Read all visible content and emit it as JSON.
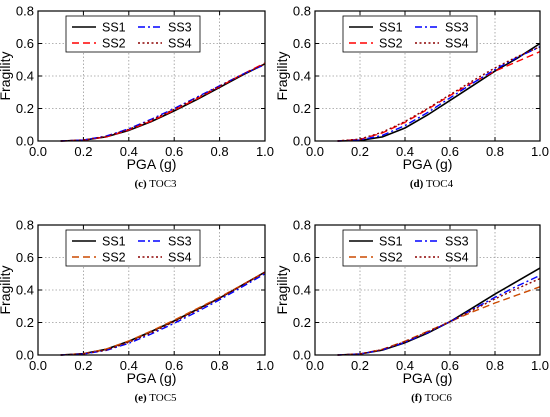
{
  "colors": {
    "SS1": "#000000",
    "SS2_dash_red": "#ff0000",
    "SS2_dash_orange": "#cc4a00",
    "SS3": "#0000ff",
    "SS4": "#8b0000",
    "grid": "#9a9a9a"
  },
  "chart_data": [
    {
      "type": "line",
      "caption_letter": "(c)",
      "caption_title": "TOC3",
      "xlabel": "PGA (g)",
      "ylabel": "Fragility",
      "xlim": [
        0.0,
        1.0
      ],
      "ylim": [
        0.0,
        0.8
      ],
      "xticks": [
        "0.0",
        "0.2",
        "0.4",
        "0.6",
        "0.8",
        "1.0"
      ],
      "yticks": [
        "0.0",
        "0.2",
        "0.4",
        "0.6",
        "0.8"
      ],
      "grid": true,
      "legend_position": "top-left",
      "x": [
        0.1,
        0.2,
        0.3,
        0.4,
        0.5,
        0.6,
        0.7,
        0.8,
        0.9,
        1.0
      ],
      "series": [
        {
          "name": "SS1",
          "style": "solid",
          "color_key": "SS1",
          "values": [
            0.0,
            0.005,
            0.025,
            0.065,
            0.12,
            0.185,
            0.255,
            0.33,
            0.405,
            0.475
          ]
        },
        {
          "name": "SS2",
          "style": "dash",
          "color_key": "SS2_dash_red",
          "values": [
            0.0,
            0.005,
            0.025,
            0.068,
            0.123,
            0.19,
            0.26,
            0.335,
            0.41,
            0.48
          ]
        },
        {
          "name": "SS3",
          "style": "dashdot",
          "color_key": "SS3",
          "values": [
            0.0,
            0.006,
            0.03,
            0.075,
            0.135,
            0.2,
            0.27,
            0.34,
            0.41,
            0.47
          ]
        },
        {
          "name": "SS4",
          "style": "dot",
          "color_key": "SS4",
          "values": [
            0.0,
            0.006,
            0.028,
            0.072,
            0.13,
            0.195,
            0.265,
            0.338,
            0.408,
            0.475
          ]
        }
      ]
    },
    {
      "type": "line",
      "caption_letter": "(d)",
      "caption_title": "TOC4",
      "xlabel": "PGA (g)",
      "ylabel": "Fragility",
      "xlim": [
        0.0,
        1.0
      ],
      "ylim": [
        0.0,
        0.8
      ],
      "xticks": [
        "0.0",
        "0.2",
        "0.4",
        "0.6",
        "0.8",
        "1.0"
      ],
      "yticks": [
        "0.0",
        "0.2",
        "0.4",
        "0.6",
        "0.8"
      ],
      "grid": true,
      "legend_position": "top-left",
      "x": [
        0.1,
        0.2,
        0.3,
        0.4,
        0.5,
        0.6,
        0.7,
        0.8,
        0.9,
        1.0
      ],
      "series": [
        {
          "name": "SS1",
          "style": "solid",
          "color_key": "SS1",
          "values": [
            0.0,
            0.003,
            0.025,
            0.08,
            0.16,
            0.25,
            0.34,
            0.43,
            0.51,
            0.6
          ]
        },
        {
          "name": "SS2",
          "style": "dash",
          "color_key": "SS2_dash_red",
          "values": [
            0.0,
            0.01,
            0.05,
            0.115,
            0.195,
            0.28,
            0.36,
            0.43,
            0.49,
            0.55
          ]
        },
        {
          "name": "SS3",
          "style": "dashdot",
          "color_key": "SS3",
          "values": [
            0.0,
            0.006,
            0.035,
            0.095,
            0.175,
            0.265,
            0.355,
            0.44,
            0.515,
            0.58
          ]
        },
        {
          "name": "SS4",
          "style": "dot",
          "color_key": "SS4",
          "values": [
            0.0,
            0.012,
            0.055,
            0.12,
            0.2,
            0.285,
            0.37,
            0.45,
            0.52,
            0.58
          ]
        }
      ]
    },
    {
      "type": "line",
      "caption_letter": "(e)",
      "caption_title": "TOC5",
      "xlabel": "PGA (g)",
      "ylabel": "Fragility",
      "xlim": [
        0.0,
        1.0
      ],
      "ylim": [
        0.0,
        0.8
      ],
      "xticks": [
        "0.0",
        "0.2",
        "0.4",
        "0.6",
        "0.8",
        "1.0"
      ],
      "yticks": [
        "0.0",
        "0.2",
        "0.4",
        "0.6",
        "0.8"
      ],
      "grid": true,
      "legend_position": "top-left",
      "x": [
        0.1,
        0.2,
        0.3,
        0.4,
        0.5,
        0.6,
        0.7,
        0.8,
        0.9,
        1.0
      ],
      "series": [
        {
          "name": "SS1",
          "style": "solid",
          "color_key": "SS1",
          "values": [
            0.0,
            0.008,
            0.035,
            0.085,
            0.145,
            0.21,
            0.28,
            0.35,
            0.43,
            0.51
          ]
        },
        {
          "name": "SS2",
          "style": "dash",
          "color_key": "SS2_dash_orange",
          "values": [
            0.0,
            0.008,
            0.036,
            0.087,
            0.148,
            0.215,
            0.285,
            0.355,
            0.432,
            0.51
          ]
        },
        {
          "name": "SS3",
          "style": "dashdot",
          "color_key": "SS3",
          "values": [
            0.0,
            0.006,
            0.028,
            0.072,
            0.13,
            0.195,
            0.265,
            0.34,
            0.42,
            0.5
          ]
        },
        {
          "name": "SS4",
          "style": "dot",
          "color_key": "SS4",
          "values": [
            0.0,
            0.007,
            0.03,
            0.078,
            0.138,
            0.205,
            0.275,
            0.35,
            0.43,
            0.51
          ]
        }
      ]
    },
    {
      "type": "line",
      "caption_letter": "(f)",
      "caption_title": "TOC6",
      "xlabel": "PGA (g)",
      "ylabel": "Fragility",
      "xlim": [
        0.0,
        1.0
      ],
      "ylim": [
        0.0,
        0.8
      ],
      "xticks": [
        "0.0",
        "0.2",
        "0.4",
        "0.6",
        "0.8",
        "1.0"
      ],
      "yticks": [
        "0.0",
        "0.2",
        "0.4",
        "0.6",
        "0.8"
      ],
      "grid": true,
      "legend_position": "top-left",
      "x": [
        0.1,
        0.2,
        0.3,
        0.4,
        0.5,
        0.6,
        0.7,
        0.8,
        0.9,
        1.0
      ],
      "series": [
        {
          "name": "SS1",
          "style": "solid",
          "color_key": "SS1",
          "values": [
            0.0,
            0.006,
            0.03,
            0.075,
            0.135,
            0.205,
            0.29,
            0.375,
            0.455,
            0.535
          ]
        },
        {
          "name": "SS2",
          "style": "dash",
          "color_key": "SS2_dash_orange",
          "values": [
            0.0,
            0.007,
            0.035,
            0.085,
            0.145,
            0.205,
            0.265,
            0.32,
            0.37,
            0.42
          ]
        },
        {
          "name": "SS3",
          "style": "dashdot",
          "color_key": "SS3",
          "values": [
            0.0,
            0.006,
            0.032,
            0.078,
            0.138,
            0.205,
            0.28,
            0.355,
            0.425,
            0.49
          ]
        },
        {
          "name": "SS4",
          "style": "dot",
          "color_key": "SS4",
          "values": [
            0.0,
            0.007,
            0.034,
            0.082,
            0.142,
            0.205,
            0.275,
            0.345,
            0.41,
            0.47
          ]
        }
      ]
    }
  ]
}
